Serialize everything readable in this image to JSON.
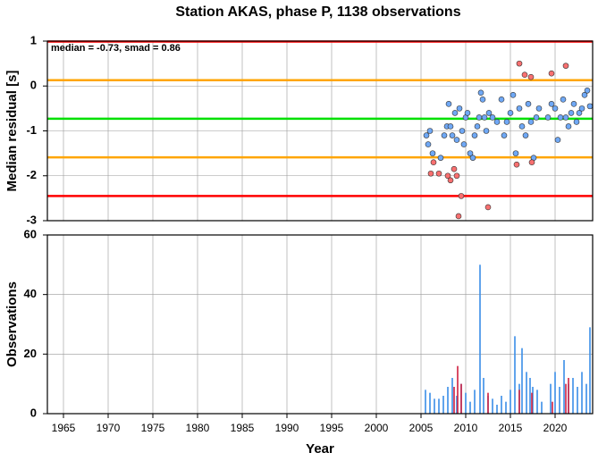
{
  "chart_data": [
    {
      "type": "scatter",
      "title": "Station AKAS, phase P, 1138 observations",
      "y_label": "Median residual [s]",
      "annotation": "median = -0.73, smad = 0.86",
      "xlim": [
        1963.2,
        2024.2
      ],
      "ylim": [
        -3,
        1
      ],
      "yticks": [
        1,
        0,
        -1,
        -2,
        -3
      ],
      "grid": true,
      "hlines": [
        {
          "value": 0.99,
          "color": "#ff0000"
        },
        {
          "value": 0.13,
          "color": "#ffa500"
        },
        {
          "value": -0.73,
          "color": "#00e000"
        },
        {
          "value": -1.59,
          "color": "#ffa500"
        },
        {
          "value": -2.45,
          "color": "#ff0000"
        }
      ],
      "series": [
        {
          "color": "#6fa8f5",
          "x": [
            2005.6,
            2005.8,
            2006,
            2006.3,
            2007.2,
            2007.6,
            2007.9,
            2008.1,
            2008.3,
            2008.5,
            2008.8,
            2009,
            2009.3,
            2009.6,
            2009.8,
            2010,
            2010.2,
            2010.5,
            2010.8,
            2011,
            2011.3,
            2011.5,
            2011.7,
            2011.9,
            2012.1,
            2012.3,
            2012.6,
            2013,
            2013.5,
            2014,
            2014.3,
            2014.6,
            2015,
            2015.3,
            2015.6,
            2016,
            2016.3,
            2016.7,
            2017,
            2017.3,
            2017.6,
            2017.9,
            2018.2,
            2019.2,
            2019.6,
            2020,
            2020.3,
            2020.6,
            2020.9,
            2021.2,
            2021.5,
            2021.8,
            2022.1,
            2022.4,
            2022.7,
            2023,
            2023.3,
            2023.6,
            2023.9
          ],
          "values": [
            -1.1,
            -1.3,
            -1.0,
            -1.5,
            -1.6,
            -1.1,
            -0.9,
            -0.4,
            -0.9,
            -1.1,
            -0.6,
            -1.2,
            -0.5,
            -1.0,
            -1.3,
            -0.7,
            -0.6,
            -1.5,
            -1.6,
            -1.1,
            -0.9,
            -0.7,
            -0.15,
            -0.3,
            -0.7,
            -1.0,
            -0.6,
            -0.7,
            -0.8,
            -0.3,
            -1.1,
            -0.8,
            -0.6,
            -0.2,
            -1.5,
            -0.5,
            -0.9,
            -1.1,
            -0.4,
            -0.8,
            -1.6,
            -0.7,
            -0.5,
            -0.7,
            -0.4,
            -0.5,
            -1.2,
            -0.7,
            -0.3,
            -0.7,
            -0.9,
            -0.6,
            -0.4,
            -0.8,
            -0.6,
            -0.5,
            -0.2,
            -0.1,
            -0.45
          ]
        },
        {
          "color": "#f87070",
          "x": [
            2006.1,
            2006.4,
            2007,
            2008,
            2008.3,
            2008.7,
            2009,
            2009.2,
            2009.5,
            2012.5,
            2015.7,
            2016,
            2016.6,
            2017.3,
            2017.4,
            2019.6,
            2021.2
          ],
          "values": [
            -1.95,
            -1.7,
            -1.95,
            -2.0,
            -2.1,
            -1.85,
            -2.0,
            -2.9,
            -2.45,
            -2.7,
            -1.75,
            0.5,
            0.25,
            0.2,
            -1.7,
            0.28,
            0.45
          ]
        }
      ]
    },
    {
      "type": "bar",
      "x_label": "Year",
      "y_label": "Observations",
      "xlim": [
        1963.2,
        2024.2
      ],
      "xticks": [
        1965,
        1970,
        1975,
        1980,
        1985,
        1990,
        1995,
        2000,
        2005,
        2010,
        2015,
        2020
      ],
      "ylim": [
        0,
        60
      ],
      "yticks": [
        0,
        20,
        40,
        60
      ],
      "grid": true,
      "series": [
        {
          "color": "#3a8ee8",
          "x": [
            2005.5,
            2006,
            2006.5,
            2007,
            2007.5,
            2008,
            2008.5,
            2009,
            2009.5,
            2010,
            2010.5,
            2011,
            2011.6,
            2012,
            2012.5,
            2013,
            2013.5,
            2014,
            2014.5,
            2015,
            2015.5,
            2016,
            2016.3,
            2016.8,
            2017.2,
            2017.5,
            2018,
            2018.5,
            2019.5,
            2020,
            2020.5,
            2021,
            2021.5,
            2022,
            2022.5,
            2023,
            2023.5,
            2023.9
          ],
          "values": [
            8,
            7,
            5,
            5,
            6,
            9,
            12,
            6,
            10,
            7,
            4,
            8,
            50,
            12,
            6,
            5,
            3,
            6,
            4,
            8,
            26,
            10,
            22,
            14,
            12,
            9,
            8,
            4,
            10,
            14,
            9,
            18,
            10,
            12,
            9,
            14,
            10,
            29
          ]
        },
        {
          "color": "#d02040",
          "x": [
            2008.7,
            2009.1,
            2009.5,
            2012.5,
            2016,
            2017.4,
            2019.7,
            2021.2,
            2021.5
          ],
          "values": [
            9,
            16,
            10,
            7,
            8,
            7,
            4,
            10,
            12
          ]
        }
      ]
    }
  ]
}
